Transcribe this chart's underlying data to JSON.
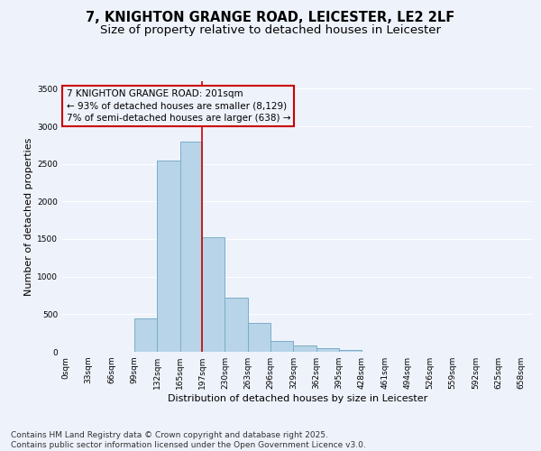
{
  "title_line1": "7, KNIGHTON GRANGE ROAD, LEICESTER, LE2 2LF",
  "title_line2": "Size of property relative to detached houses in Leicester",
  "xlabel": "Distribution of detached houses by size in Leicester",
  "ylabel": "Number of detached properties",
  "bar_left_edges": [
    0,
    33,
    66,
    99,
    132,
    165,
    197,
    230,
    263,
    296,
    329,
    362,
    395,
    428,
    461,
    494,
    526,
    559,
    592,
    625
  ],
  "bar_widths": [
    33,
    33,
    33,
    33,
    33,
    32,
    33,
    33,
    33,
    33,
    33,
    33,
    33,
    33,
    33,
    32,
    33,
    33,
    33,
    33
  ],
  "bar_heights": [
    0,
    0,
    0,
    450,
    2550,
    2800,
    1520,
    720,
    380,
    150,
    90,
    50,
    20,
    5,
    2,
    1,
    0,
    0,
    0,
    0
  ],
  "bar_color": "#b8d4e8",
  "bar_edge_color": "#7aaec8",
  "bar_linewidth": 0.7,
  "vline_x": 197,
  "vline_color": "#cc0000",
  "vline_linewidth": 1.2,
  "annotation_title": "7 KNIGHTON GRANGE ROAD: 201sqm",
  "annotation_line2": "← 93% of detached houses are smaller (8,129)",
  "annotation_line3": "7% of semi-detached houses are larger (638) →",
  "annotation_box_color": "#cc0000",
  "ylim": [
    0,
    3600
  ],
  "yticks": [
    0,
    500,
    1000,
    1500,
    2000,
    2500,
    3000,
    3500
  ],
  "xtick_labels": [
    "0sqm",
    "33sqm",
    "66sqm",
    "99sqm",
    "132sqm",
    "165sqm",
    "197sqm",
    "230sqm",
    "263sqm",
    "296sqm",
    "329sqm",
    "362sqm",
    "395sqm",
    "428sqm",
    "461sqm",
    "494sqm",
    "526sqm",
    "559sqm",
    "592sqm",
    "625sqm",
    "658sqm"
  ],
  "xtick_positions": [
    0,
    33,
    66,
    99,
    132,
    165,
    197,
    230,
    263,
    296,
    329,
    362,
    395,
    428,
    461,
    494,
    526,
    559,
    592,
    625,
    658
  ],
  "bg_color": "#eef2fb",
  "grid_color": "#ffffff",
  "footer_line1": "Contains HM Land Registry data © Crown copyright and database right 2025.",
  "footer_line2": "Contains public sector information licensed under the Open Government Licence v3.0.",
  "title_fontsize": 10.5,
  "subtitle_fontsize": 9.5,
  "axis_label_fontsize": 8,
  "tick_fontsize": 6.5,
  "annotation_fontsize": 7.5,
  "footer_fontsize": 6.5,
  "xlim": [
    -5,
    675
  ]
}
